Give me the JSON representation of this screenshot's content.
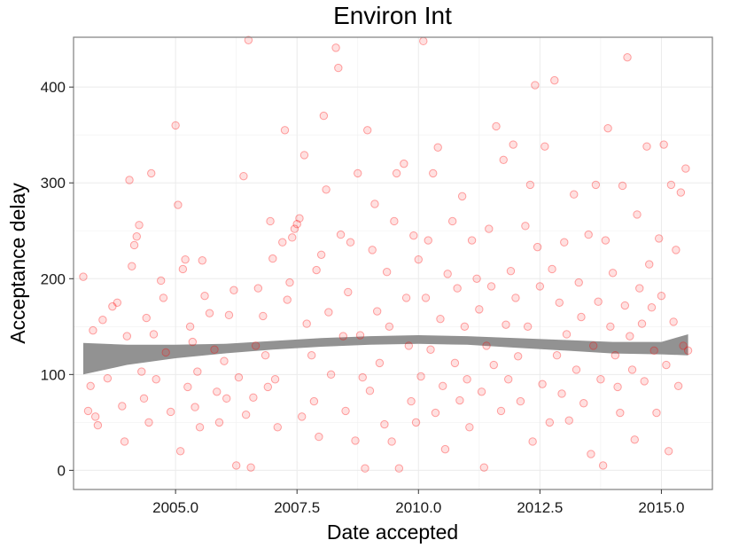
{
  "chart_data": {
    "type": "scatter",
    "title": "Environ Int",
    "xlabel": "Date accepted",
    "ylabel": "Acceptance delay",
    "xlim": [
      2002.9,
      2016.05
    ],
    "ylim": [
      -20,
      452
    ],
    "x_ticks": [
      2005.0,
      2007.5,
      2010.0,
      2012.5,
      2015.0
    ],
    "x_tick_labels": [
      "2005.0",
      "2007.5",
      "2010.0",
      "2012.5",
      "2015.0"
    ],
    "y_ticks": [
      0,
      100,
      200,
      300,
      400
    ],
    "y_tick_labels": [
      "0",
      "100",
      "200",
      "300",
      "400"
    ],
    "grid": true,
    "point_color": "#ff0000",
    "point_fill_opacity": 0.12,
    "point_stroke_opacity": 0.35,
    "band_color": "#8c8c8c",
    "panel_border_color": "#7f7f7f",
    "gridline_color": "#ebebeb",
    "points": [
      [
        2003.1,
        202
      ],
      [
        2003.2,
        62
      ],
      [
        2003.25,
        88
      ],
      [
        2003.3,
        146
      ],
      [
        2003.35,
        56
      ],
      [
        2003.4,
        47
      ],
      [
        2003.5,
        157
      ],
      [
        2003.6,
        96
      ],
      [
        2003.7,
        171
      ],
      [
        2003.8,
        175
      ],
      [
        2003.9,
        67
      ],
      [
        2003.95,
        30
      ],
      [
        2004.0,
        140
      ],
      [
        2004.05,
        303
      ],
      [
        2004.1,
        213
      ],
      [
        2004.15,
        235
      ],
      [
        2004.2,
        244
      ],
      [
        2004.25,
        256
      ],
      [
        2004.3,
        103
      ],
      [
        2004.35,
        75
      ],
      [
        2004.4,
        159
      ],
      [
        2004.45,
        50
      ],
      [
        2004.5,
        310
      ],
      [
        2004.55,
        142
      ],
      [
        2004.6,
        95
      ],
      [
        2004.7,
        198
      ],
      [
        2004.75,
        180
      ],
      [
        2004.8,
        123
      ],
      [
        2004.9,
        61
      ],
      [
        2005.0,
        360
      ],
      [
        2005.05,
        277
      ],
      [
        2005.1,
        20
      ],
      [
        2005.15,
        210
      ],
      [
        2005.2,
        220
      ],
      [
        2005.25,
        87
      ],
      [
        2005.3,
        150
      ],
      [
        2005.35,
        134
      ],
      [
        2005.4,
        66
      ],
      [
        2005.45,
        103
      ],
      [
        2005.5,
        45
      ],
      [
        2005.55,
        219
      ],
      [
        2005.6,
        182
      ],
      [
        2005.7,
        164
      ],
      [
        2005.8,
        126
      ],
      [
        2005.85,
        82
      ],
      [
        2005.9,
        50
      ],
      [
        2006.0,
        114
      ],
      [
        2006.05,
        75
      ],
      [
        2006.1,
        162
      ],
      [
        2006.2,
        188
      ],
      [
        2006.25,
        5
      ],
      [
        2006.3,
        97
      ],
      [
        2006.4,
        307
      ],
      [
        2006.45,
        58
      ],
      [
        2006.5,
        449
      ],
      [
        2006.55,
        3
      ],
      [
        2006.6,
        76
      ],
      [
        2006.65,
        130
      ],
      [
        2006.7,
        190
      ],
      [
        2006.8,
        161
      ],
      [
        2006.85,
        120
      ],
      [
        2006.9,
        87
      ],
      [
        2006.95,
        260
      ],
      [
        2007.0,
        221
      ],
      [
        2007.05,
        95
      ],
      [
        2007.1,
        45
      ],
      [
        2007.2,
        238
      ],
      [
        2007.25,
        355
      ],
      [
        2007.3,
        178
      ],
      [
        2007.35,
        196
      ],
      [
        2007.4,
        243
      ],
      [
        2007.45,
        252
      ],
      [
        2007.5,
        257
      ],
      [
        2007.55,
        263
      ],
      [
        2007.6,
        56
      ],
      [
        2007.65,
        329
      ],
      [
        2007.7,
        153
      ],
      [
        2007.8,
        120
      ],
      [
        2007.85,
        72
      ],
      [
        2007.9,
        209
      ],
      [
        2007.95,
        35
      ],
      [
        2008.0,
        225
      ],
      [
        2008.05,
        370
      ],
      [
        2008.1,
        293
      ],
      [
        2008.15,
        165
      ],
      [
        2008.2,
        100
      ],
      [
        2008.3,
        441
      ],
      [
        2008.35,
        420
      ],
      [
        2008.4,
        246
      ],
      [
        2008.45,
        140
      ],
      [
        2008.5,
        62
      ],
      [
        2008.55,
        186
      ],
      [
        2008.6,
        238
      ],
      [
        2008.7,
        31
      ],
      [
        2008.75,
        310
      ],
      [
        2008.8,
        141
      ],
      [
        2008.85,
        97
      ],
      [
        2008.9,
        2
      ],
      [
        2008.95,
        355
      ],
      [
        2009.0,
        83
      ],
      [
        2009.05,
        230
      ],
      [
        2009.1,
        278
      ],
      [
        2009.15,
        166
      ],
      [
        2009.2,
        112
      ],
      [
        2009.3,
        48
      ],
      [
        2009.35,
        207
      ],
      [
        2009.4,
        150
      ],
      [
        2009.45,
        30
      ],
      [
        2009.5,
        260
      ],
      [
        2009.55,
        310
      ],
      [
        2009.6,
        2
      ],
      [
        2009.7,
        320
      ],
      [
        2009.75,
        180
      ],
      [
        2009.8,
        130
      ],
      [
        2009.85,
        72
      ],
      [
        2009.9,
        245
      ],
      [
        2009.95,
        50
      ],
      [
        2010.0,
        220
      ],
      [
        2010.05,
        98
      ],
      [
        2010.1,
        448
      ],
      [
        2010.15,
        180
      ],
      [
        2010.2,
        240
      ],
      [
        2010.25,
        126
      ],
      [
        2010.3,
        310
      ],
      [
        2010.35,
        60
      ],
      [
        2010.4,
        337
      ],
      [
        2010.45,
        158
      ],
      [
        2010.5,
        88
      ],
      [
        2010.55,
        22
      ],
      [
        2010.6,
        205
      ],
      [
        2010.7,
        260
      ],
      [
        2010.75,
        112
      ],
      [
        2010.8,
        190
      ],
      [
        2010.85,
        73
      ],
      [
        2010.9,
        286
      ],
      [
        2010.95,
        150
      ],
      [
        2011.0,
        95
      ],
      [
        2011.05,
        45
      ],
      [
        2011.1,
        240
      ],
      [
        2011.2,
        200
      ],
      [
        2011.25,
        168
      ],
      [
        2011.3,
        82
      ],
      [
        2011.35,
        3
      ],
      [
        2011.4,
        130
      ],
      [
        2011.45,
        252
      ],
      [
        2011.5,
        192
      ],
      [
        2011.55,
        110
      ],
      [
        2011.6,
        359
      ],
      [
        2011.7,
        62
      ],
      [
        2011.75,
        324
      ],
      [
        2011.8,
        152
      ],
      [
        2011.85,
        95
      ],
      [
        2011.9,
        208
      ],
      [
        2011.95,
        340
      ],
      [
        2012.0,
        180
      ],
      [
        2012.05,
        119
      ],
      [
        2012.1,
        72
      ],
      [
        2012.2,
        255
      ],
      [
        2012.25,
        150
      ],
      [
        2012.3,
        298
      ],
      [
        2012.35,
        30
      ],
      [
        2012.4,
        402
      ],
      [
        2012.45,
        233
      ],
      [
        2012.5,
        192
      ],
      [
        2012.55,
        90
      ],
      [
        2012.6,
        338
      ],
      [
        2012.7,
        50
      ],
      [
        2012.75,
        210
      ],
      [
        2012.8,
        407
      ],
      [
        2012.85,
        120
      ],
      [
        2012.9,
        175
      ],
      [
        2012.95,
        80
      ],
      [
        2013.0,
        238
      ],
      [
        2013.05,
        142
      ],
      [
        2013.1,
        52
      ],
      [
        2013.2,
        288
      ],
      [
        2013.25,
        105
      ],
      [
        2013.3,
        196
      ],
      [
        2013.35,
        160
      ],
      [
        2013.4,
        70
      ],
      [
        2013.5,
        246
      ],
      [
        2013.55,
        17
      ],
      [
        2013.6,
        130
      ],
      [
        2013.65,
        298
      ],
      [
        2013.7,
        176
      ],
      [
        2013.75,
        95
      ],
      [
        2013.8,
        5
      ],
      [
        2013.85,
        240
      ],
      [
        2013.9,
        357
      ],
      [
        2013.95,
        150
      ],
      [
        2014.0,
        206
      ],
      [
        2014.05,
        120
      ],
      [
        2014.1,
        87
      ],
      [
        2014.15,
        60
      ],
      [
        2014.2,
        297
      ],
      [
        2014.25,
        172
      ],
      [
        2014.3,
        431
      ],
      [
        2014.35,
        140
      ],
      [
        2014.4,
        105
      ],
      [
        2014.45,
        32
      ],
      [
        2014.5,
        267
      ],
      [
        2014.55,
        190
      ],
      [
        2014.6,
        153
      ],
      [
        2014.65,
        93
      ],
      [
        2014.7,
        338
      ],
      [
        2014.75,
        215
      ],
      [
        2014.8,
        170
      ],
      [
        2014.85,
        125
      ],
      [
        2014.9,
        60
      ],
      [
        2014.95,
        242
      ],
      [
        2015.0,
        182
      ],
      [
        2015.05,
        340
      ],
      [
        2015.1,
        110
      ],
      [
        2015.15,
        20
      ],
      [
        2015.2,
        298
      ],
      [
        2015.25,
        155
      ],
      [
        2015.3,
        230
      ],
      [
        2015.35,
        88
      ],
      [
        2015.4,
        290
      ],
      [
        2015.45,
        130
      ],
      [
        2015.5,
        315
      ],
      [
        2015.55,
        125
      ]
    ],
    "trend_band": {
      "x": [
        2003.1,
        2004.0,
        2005.0,
        2006.0,
        2007.0,
        2008.0,
        2009.0,
        2010.0,
        2011.0,
        2012.0,
        2013.0,
        2014.0,
        2015.0,
        2015.55
      ],
      "upper": [
        133,
        131,
        131,
        132,
        135,
        138,
        140,
        141,
        140,
        138,
        136,
        134,
        134,
        142
      ],
      "lower": [
        100,
        110,
        117,
        122,
        126,
        129,
        131,
        132,
        131,
        128,
        125,
        122,
        121,
        120
      ]
    }
  }
}
